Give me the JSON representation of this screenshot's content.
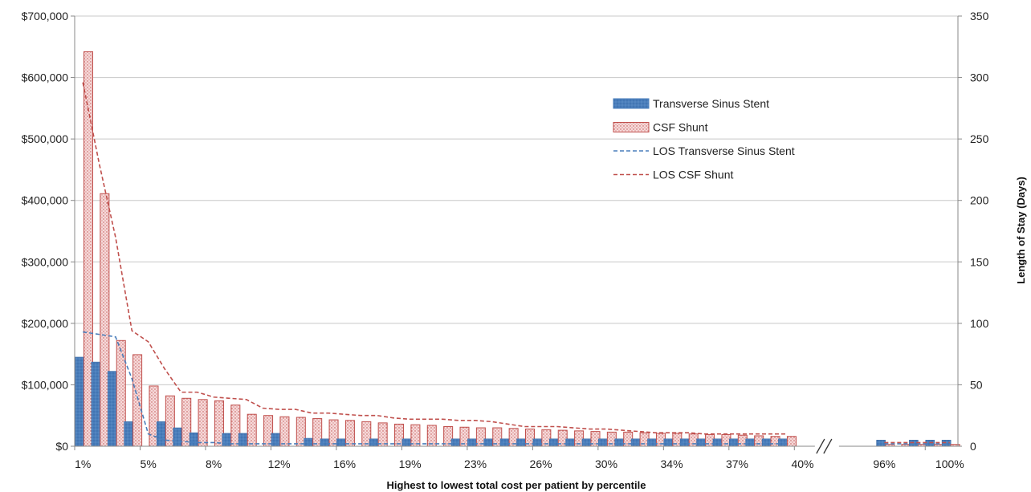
{
  "chart_data": {
    "type": "bar",
    "xlabel": "Highest to lowest total cost per patient by percentile",
    "ylabel_right": "Length of Stay (Days)",
    "y_left": {
      "min": 0,
      "max": 700000,
      "step": 100000,
      "tick_labels": [
        "$0",
        "$100,000",
        "$200,000",
        "$300,000",
        "$400,000",
        "$500,000",
        "$600,000",
        "$700,000"
      ]
    },
    "y_right": {
      "min": 0,
      "max": 350,
      "step": 50,
      "tick_labels": [
        "0",
        "50",
        "100",
        "150",
        "200",
        "250",
        "300",
        "350"
      ]
    },
    "grid": true,
    "legend_position": "upper-right",
    "x_tick_labels": [
      {
        "slot": 0,
        "label": "1%"
      },
      {
        "slot": 4,
        "label": "5%"
      },
      {
        "slot": 8,
        "label": "8%"
      },
      {
        "slot": 12,
        "label": "12%"
      },
      {
        "slot": 16,
        "label": "16%"
      },
      {
        "slot": 20,
        "label": "19%"
      },
      {
        "slot": 24,
        "label": "23%"
      },
      {
        "slot": 28,
        "label": "26%"
      },
      {
        "slot": 32,
        "label": "30%"
      },
      {
        "slot": 36,
        "label": "34%"
      },
      {
        "slot": 40,
        "label": "37%"
      },
      {
        "slot": 44,
        "label": "40%"
      },
      {
        "slot": 49,
        "label": "96%"
      },
      {
        "slot": 53,
        "label": "100%"
      }
    ],
    "series": [
      {
        "name": "Transverse Sinus Stent",
        "kind": "bar",
        "axis": "left",
        "color": "#4a7ebb",
        "values": [
          145000,
          137000,
          122000,
          40000,
          null,
          40000,
          30000,
          22000,
          null,
          21000,
          21000,
          null,
          21000,
          null,
          13000,
          12000,
          12000,
          null,
          12000,
          null,
          12000,
          null,
          null,
          12000,
          12000,
          12000,
          12000,
          12000,
          12000,
          12000,
          12000,
          12000,
          12000,
          12000,
          12000,
          12000,
          12000,
          12000,
          12000,
          12000,
          12000,
          12000,
          12000,
          12000,
          null,
          null,
          null,
          null,
          null,
          10000,
          null,
          10000,
          10000,
          10000
        ]
      },
      {
        "name": "CSF Shunt",
        "kind": "bar",
        "axis": "left",
        "color": "#c0504d",
        "values": [
          642000,
          411000,
          172000,
          149000,
          98000,
          82000,
          78000,
          76000,
          74000,
          67000,
          52000,
          50000,
          48000,
          47000,
          45000,
          43000,
          42000,
          40000,
          38000,
          36000,
          35000,
          34000,
          32000,
          31000,
          30000,
          30000,
          29000,
          28000,
          27000,
          26000,
          25000,
          24000,
          23000,
          23000,
          22000,
          21000,
          21000,
          20000,
          19000,
          19000,
          18000,
          17000,
          16000,
          16000,
          null,
          null,
          null,
          null,
          null,
          3000,
          3000,
          3000,
          3000,
          3000
        ]
      },
      {
        "name": "LOS Transverse Sinus Stent",
        "kind": "line",
        "axis": "right",
        "color": "#4a7ebb",
        "values": [
          93,
          91,
          89,
          55,
          10,
          5,
          4,
          3,
          3,
          2,
          2,
          2,
          2,
          2,
          2,
          2,
          2,
          2,
          2,
          2,
          2,
          2,
          2,
          2,
          2,
          2,
          2,
          2,
          2,
          2,
          2,
          2,
          2,
          2,
          2,
          2,
          2,
          2,
          2,
          2,
          2,
          2,
          2,
          2,
          null,
          null,
          null,
          null,
          null,
          2,
          2,
          2,
          2,
          2
        ]
      },
      {
        "name": "LOS CSF Shunt",
        "kind": "line",
        "axis": "right",
        "color": "#c0504d",
        "values": [
          296,
          230,
          170,
          94,
          85,
          63,
          44,
          44,
          40,
          39,
          38,
          31,
          30,
          30,
          27,
          27,
          26,
          25,
          25,
          23,
          22,
          22,
          22,
          21,
          21,
          20,
          18,
          16,
          16,
          16,
          15,
          14,
          14,
          13,
          12,
          11,
          11,
          11,
          10,
          10,
          10,
          10,
          10,
          10,
          null,
          null,
          null,
          null,
          null,
          3,
          3,
          3,
          3,
          3
        ]
      }
    ],
    "slots": 54
  }
}
